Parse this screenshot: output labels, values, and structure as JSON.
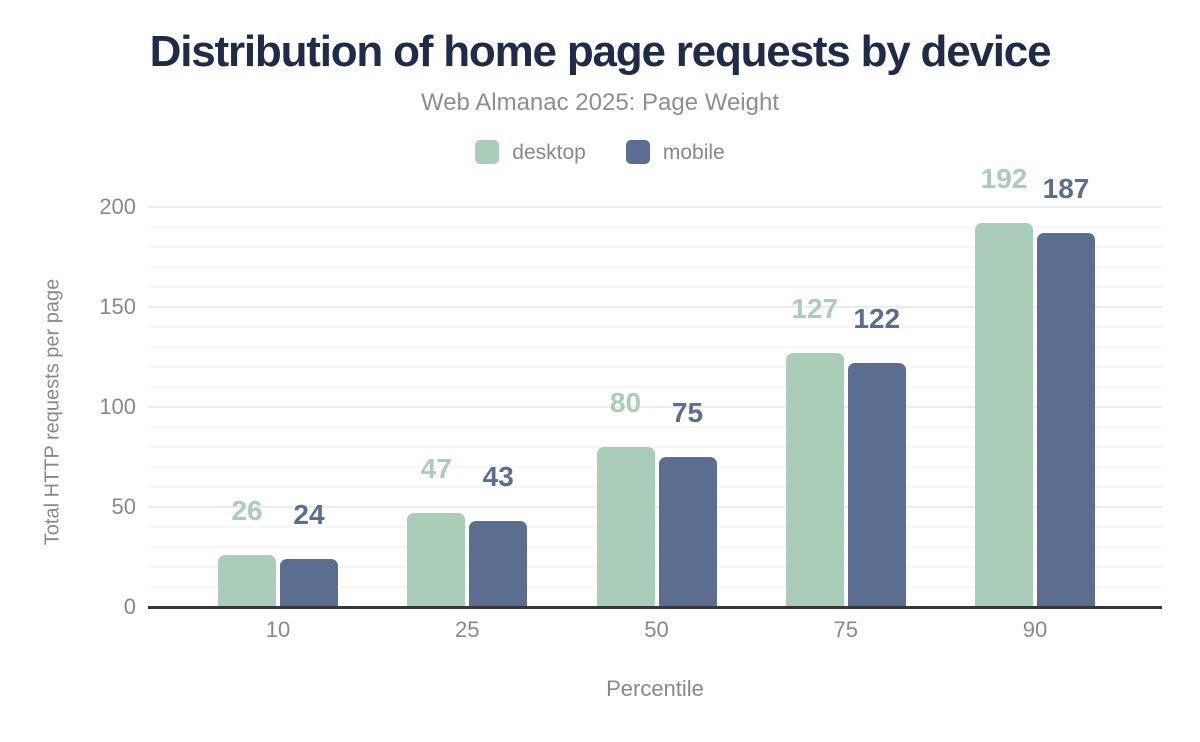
{
  "header": {
    "title": "Distribution of home page requests by device",
    "subtitle": "Web Almanac 2025: Page Weight"
  },
  "legend": {
    "items": [
      {
        "label": "desktop",
        "color": "#a9cdb8"
      },
      {
        "label": "mobile",
        "color": "#5c6e90"
      }
    ]
  },
  "colors": {
    "title_text": "#1e2b49",
    "subtitle_text": "#8a8e96",
    "axis_text": "#85898f",
    "axis_line": "#37363c",
    "grid_major": "#ececec",
    "grid_minor": "#f6f6f6",
    "desktop_series": "#a9cdb8",
    "mobile_series": "#5c6e90"
  },
  "chart_data": {
    "type": "bar",
    "title": "Distribution of home page requests by device",
    "subtitle": "Web Almanac 2025: Page Weight",
    "categories": [
      "10",
      "25",
      "50",
      "75",
      "90"
    ],
    "series": [
      {
        "name": "desktop",
        "color": "#a9cdb8",
        "values": [
          26,
          47,
          80,
          127,
          192
        ]
      },
      {
        "name": "mobile",
        "color": "#5c6e90",
        "values": [
          24,
          43,
          75,
          122,
          187
        ]
      }
    ],
    "xlabel": "Percentile",
    "ylabel": "Total HTTP requests per page",
    "ylim": [
      0,
      200
    ],
    "yticks": [
      0,
      50,
      100,
      150,
      200
    ],
    "minor_grid_step": 10,
    "major_grid_step": 50,
    "grid": "horizontal only",
    "legend_position": "top center",
    "data_labels": true
  }
}
